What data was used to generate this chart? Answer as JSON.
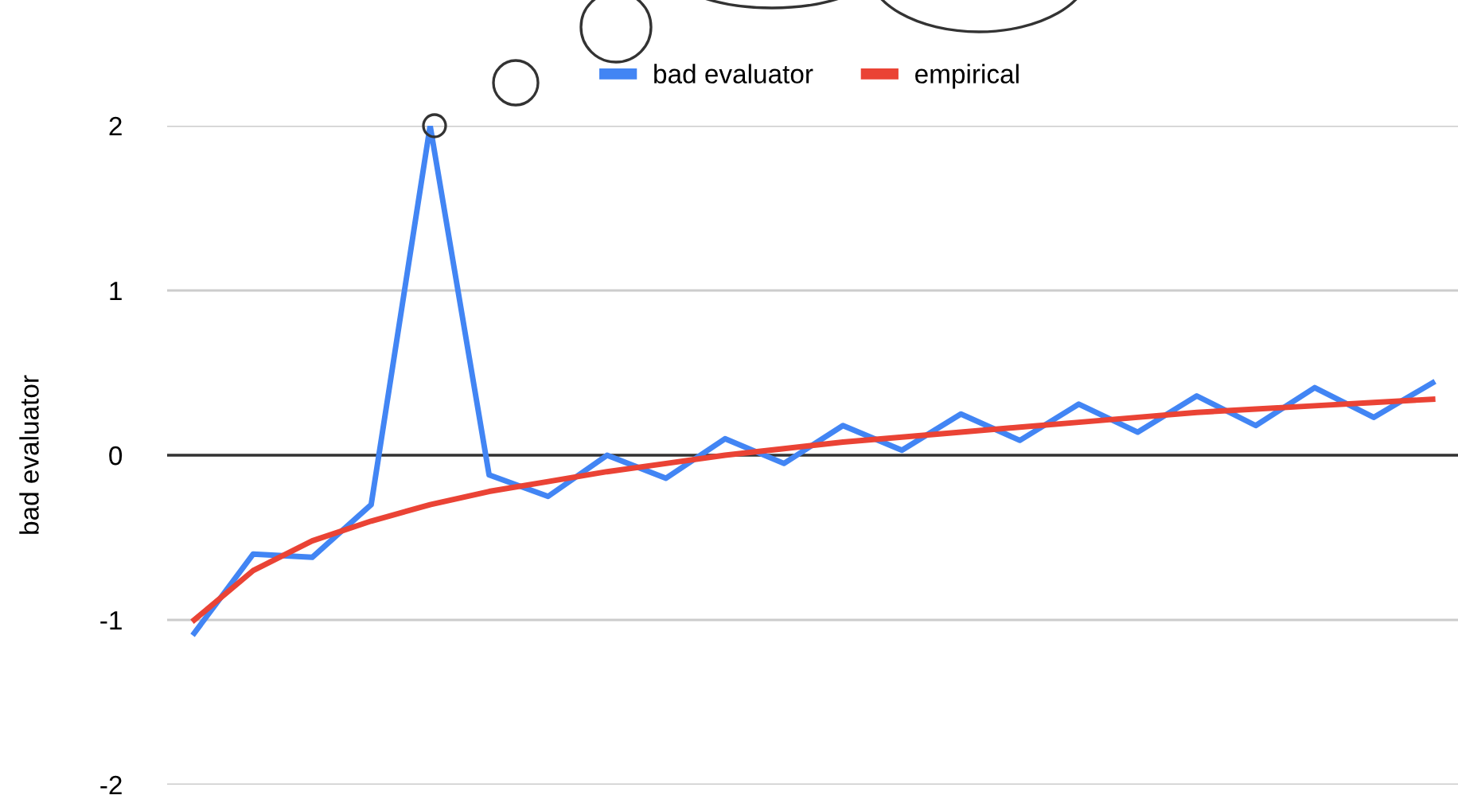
{
  "chart_data": {
    "type": "line",
    "ylabel": "bad evaluator",
    "categories": [
      null,
      null,
      null,
      null,
      null,
      null,
      null,
      null,
      null,
      null,
      null,
      null,
      null,
      null,
      null,
      null,
      null,
      null,
      null,
      null,
      null,
      null
    ],
    "series": [
      {
        "name": "bad evaluator",
        "color": "#4285f4",
        "values": [
          -1.08,
          -0.6,
          -0.62,
          -0.3,
          2.0,
          -0.12,
          -0.25,
          0.0,
          -0.14,
          0.1,
          -0.05,
          0.18,
          0.03,
          0.25,
          0.09,
          0.31,
          0.14,
          0.36,
          0.18,
          0.41,
          0.23,
          0.44
        ]
      },
      {
        "name": "empirical",
        "color": "#ea4335",
        "values": [
          -1.0,
          -0.7,
          -0.52,
          -0.4,
          -0.3,
          -0.22,
          -0.16,
          -0.1,
          -0.05,
          0.0,
          0.04,
          0.08,
          0.11,
          0.14,
          0.17,
          0.2,
          0.23,
          0.26,
          0.28,
          0.3,
          0.32,
          0.34
        ]
      }
    ],
    "ylim": [
      -2,
      2
    ],
    "yticks": [
      -2,
      -1,
      0,
      1,
      2
    ],
    "grid": "y",
    "ref_lines": [
      {
        "axis": "y",
        "value": 0,
        "color": "#333333"
      }
    ],
    "legend": "top",
    "line_style": "solid",
    "marker": "none"
  }
}
